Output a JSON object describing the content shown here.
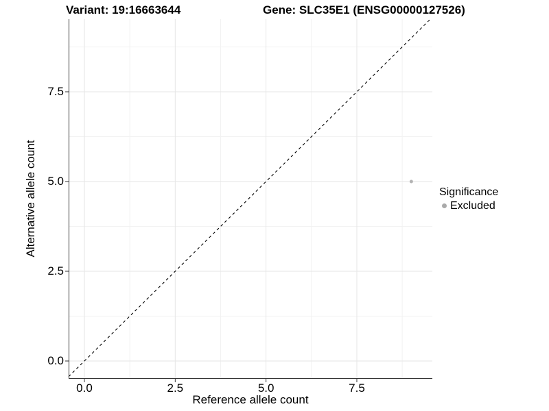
{
  "chart_data": {
    "type": "scatter",
    "title_left": "Variant: 19:16663644",
    "title_right": "Gene: SLC35E1 (ENSG00000127526)",
    "xlabel": "Reference allele count",
    "ylabel": "Alternative allele count",
    "xlim": [
      -0.45,
      9.6
    ],
    "ylim": [
      -0.5,
      9.5
    ],
    "x_major_ticks": [
      0,
      2.5,
      5,
      7.5
    ],
    "y_major_ticks": [
      0,
      2.5,
      5,
      7.5
    ],
    "x_tick_labels": [
      "0.0",
      "2.5",
      "5.0",
      "7.5"
    ],
    "y_tick_labels": [
      "0.0",
      "2.5",
      "5.0",
      "7.5"
    ],
    "minor_ticks": [
      1.25,
      3.75,
      6.25,
      8.75
    ],
    "grid": true,
    "series": [
      {
        "name": "Excluded",
        "color": "#b3b3b3",
        "points": [
          {
            "x": 9,
            "y": 5
          }
        ]
      }
    ],
    "reference_line": {
      "kind": "identity y = x",
      "style": "dashed",
      "color": "#000000"
    },
    "legend": {
      "title": "Significance",
      "position": "right",
      "entries": [
        {
          "label": "Excluded",
          "color": "#aaaaaa"
        }
      ]
    }
  },
  "colors": {
    "background": "#ffffff",
    "grid_major": "#e6e6e6",
    "grid_minor": "#f2f2f2",
    "axis": "#333333",
    "text": "#000000"
  }
}
